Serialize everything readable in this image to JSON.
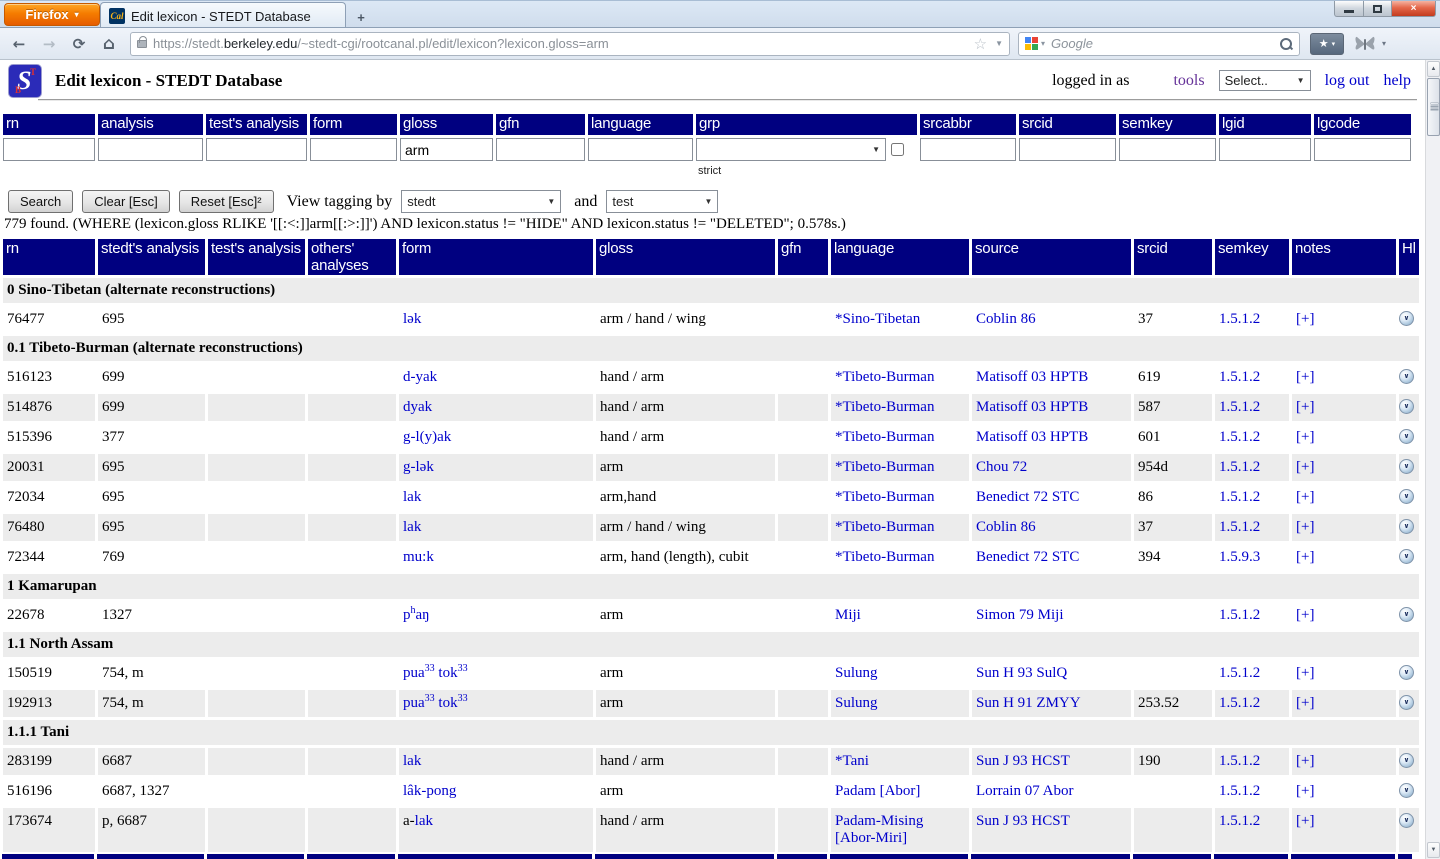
{
  "colors": {
    "navy": "#000080",
    "link_blue": "#0000cc",
    "visited_purple": "#663399",
    "shaded_row": "#ececec",
    "firefox_orange": "#f57c00"
  },
  "icons": {
    "caret_down": "▼",
    "caret_small": "▾",
    "star_outline": "☆",
    "star_solid": "★",
    "plus": "+",
    "chevron_down": "∨",
    "close": "×",
    "back": "←",
    "forward": "→",
    "reload": "⟳",
    "home": "⌂",
    "scroll_up": "▲",
    "scroll_down": "▼"
  },
  "browser": {
    "firefox_button_label": "Firefox",
    "tab_title": "Edit lexicon - STEDT Database",
    "url_pre": "https://stedt.",
    "url_domain": "berkeley.edu",
    "url_post": "/~stedt-cgi/rootcanal.pl/edit/lexicon?lexicon.gloss=arm",
    "search_placeholder": "Google"
  },
  "header": {
    "title": "Edit lexicon - STEDT Database",
    "logged_in_as": "logged in as",
    "tools_label": "tools",
    "tools_select_value": "Select..",
    "log_out_label": "log out",
    "help_label": "help"
  },
  "search_form": {
    "columns": [
      "rn",
      "analysis",
      "test's analysis",
      "form",
      "gloss",
      "gfn",
      "language",
      "grp",
      "srcabbr",
      "srcid",
      "semkey",
      "lgid",
      "lgcode"
    ],
    "values": {
      "gloss": "arm"
    },
    "strict_label": "strict",
    "search_button": "Search",
    "clear_button": "Clear [Esc]",
    "reset_button": "Reset [Esc]²",
    "view_tagging_by": "View tagging by",
    "and_label": "and",
    "tagging_select_1": "stedt",
    "tagging_select_2": "test"
  },
  "result_summary": "779 found. (WHERE (lexicon.gloss RLIKE '[[:<:]]arm[[:>:]]') AND lexicon.status != \"HIDE\" AND lexicon.status != \"DELETED\"; 0.578s.)",
  "results": {
    "columns": [
      "rn",
      "stedt's analysis",
      "test's analysis",
      "others' analyses",
      "form",
      "gloss",
      "gfn",
      "language",
      "source",
      "srcid",
      "semkey",
      "notes",
      "Hl"
    ],
    "rows": [
      {
        "section": "0 Sino-Tibetan (alternate reconstructions)"
      },
      {
        "rn": "76477",
        "stedt": "695",
        "test": "",
        "others": "",
        "form": "lək",
        "gloss": "arm / hand / wing",
        "gfn": "",
        "language": "*Sino-Tibetan",
        "source": "Coblin 86",
        "srcid": "37",
        "semkey": "1.5.1.2",
        "notes": "[+]",
        "shaded": false
      },
      {
        "section": "0.1 Tibeto-Burman (alternate reconstructions)"
      },
      {
        "rn": "516123",
        "stedt": "699",
        "test": "",
        "others": "",
        "form": "d-yak",
        "gloss": "hand / arm",
        "gfn": "",
        "language": "*Tibeto-Burman",
        "source": "Matisoff 03 HPTB",
        "srcid": "619",
        "semkey": "1.5.1.2",
        "notes": "[+]",
        "shaded": false
      },
      {
        "rn": "514876",
        "stedt": "699",
        "test": "",
        "others": "",
        "form": "dyak",
        "gloss": "hand / arm",
        "gfn": "",
        "language": "*Tibeto-Burman",
        "source": "Matisoff 03 HPTB",
        "srcid": "587",
        "semkey": "1.5.1.2",
        "notes": "[+]",
        "shaded": true
      },
      {
        "rn": "515396",
        "stedt": "377",
        "test": "",
        "others": "",
        "form": "g-l(y)ak",
        "gloss": "hand / arm",
        "gfn": "",
        "language": "*Tibeto-Burman",
        "source": "Matisoff 03 HPTB",
        "srcid": "601",
        "semkey": "1.5.1.2",
        "notes": "[+]",
        "shaded": false
      },
      {
        "rn": "20031",
        "stedt": "695",
        "test": "",
        "others": "",
        "form": "g-lək",
        "gloss": "arm",
        "gfn": "",
        "language": "*Tibeto-Burman",
        "source": "Chou 72",
        "srcid": "954d",
        "semkey": "1.5.1.2",
        "notes": "[+]",
        "shaded": true
      },
      {
        "rn": "72034",
        "stedt": "695",
        "test": "",
        "others": "",
        "form": "lak",
        "gloss": "arm,hand",
        "gfn": "",
        "language": "*Tibeto-Burman",
        "source": "Benedict 72 STC",
        "srcid": "86",
        "semkey": "1.5.1.2",
        "notes": "[+]",
        "shaded": false
      },
      {
        "rn": "76480",
        "stedt": "695",
        "test": "",
        "others": "",
        "form": "lak",
        "gloss": "arm / hand / wing",
        "gfn": "",
        "language": "*Tibeto-Burman",
        "source": "Coblin 86",
        "srcid": "37",
        "semkey": "1.5.1.2",
        "notes": "[+]",
        "shaded": true
      },
      {
        "rn": "72344",
        "stedt": "769",
        "test": "",
        "others": "",
        "form": "mu:k",
        "gloss": "arm, hand (length), cubit",
        "gfn": "",
        "language": "*Tibeto-Burman",
        "source": "Benedict 72 STC",
        "srcid": "394",
        "semkey": "1.5.9.3",
        "notes": "[+]",
        "shaded": false
      },
      {
        "section": "1 Kamarupan"
      },
      {
        "rn": "22678",
        "stedt": "1327",
        "test": "",
        "others": "",
        "form": "p^h^aŋ",
        "gloss": "arm",
        "gfn": "",
        "language": "Miji",
        "source": "Simon 79 Miji",
        "srcid": "",
        "semkey": "1.5.1.2",
        "notes": "[+]",
        "shaded": false
      },
      {
        "section": "1.1 North Assam"
      },
      {
        "rn": "150519",
        "stedt": "754, m",
        "test": "",
        "others": "",
        "form": "pua^33^ tok^33^",
        "gloss": "arm",
        "gfn": "",
        "language": "Sulung",
        "source": "Sun H 93 SulQ",
        "srcid": "",
        "semkey": "1.5.1.2",
        "notes": "[+]",
        "shaded": false
      },
      {
        "rn": "192913",
        "stedt": "754, m",
        "test": "",
        "others": "",
        "form": "pua^33^ tok^33^",
        "gloss": "arm",
        "gfn": "",
        "language": "Sulung",
        "source": "Sun H 91 ZMYY",
        "srcid": "253.52",
        "semkey": "1.5.1.2",
        "notes": "[+]",
        "shaded": true
      },
      {
        "section": "1.1.1 Tani"
      },
      {
        "rn": "283199",
        "stedt": "6687",
        "test": "",
        "others": "",
        "form": "lak",
        "gloss": "hand / arm",
        "gfn": "",
        "language": "*Tani",
        "source": "Sun J 93 HCST",
        "srcid": "190",
        "semkey": "1.5.1.2",
        "notes": "[+]",
        "shaded": true
      },
      {
        "rn": "516196",
        "stedt": "6687, 1327",
        "test": "",
        "others": "",
        "form": "lâk-pong",
        "gloss": "arm",
        "gfn": "",
        "language": "Padam [Abor]",
        "source": "Lorrain 07 Abor",
        "srcid": "",
        "semkey": "1.5.1.2",
        "notes": "[+]",
        "shaded": false
      },
      {
        "rn": "173674",
        "stedt": "p, 6687",
        "test": "",
        "others": "",
        "form_prefix": "a-",
        "form": "lak",
        "gloss": "hand / arm",
        "gfn": "",
        "language": "Padam-Mising [Abor-Miri]",
        "source": "Sun J 93 HCST",
        "srcid": "",
        "semkey": "1.5.1.2",
        "notes": "[+]",
        "shaded": true
      }
    ]
  }
}
